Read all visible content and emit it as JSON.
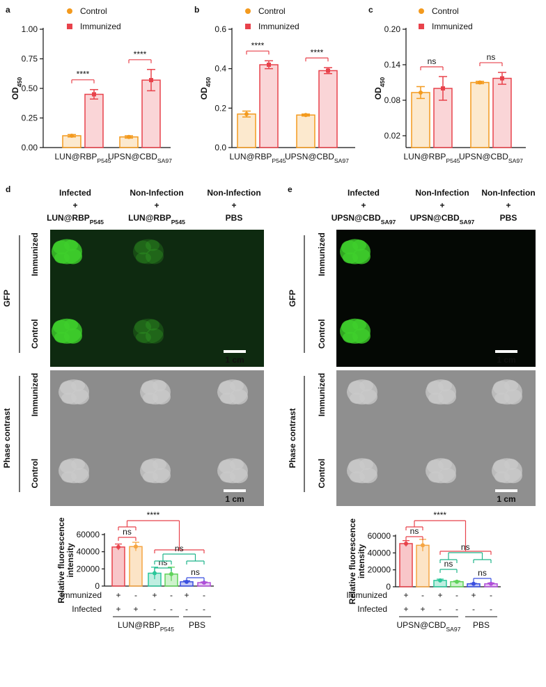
{
  "chart_data": [
    {
      "panel": "a",
      "type": "bar",
      "y_label": "OD",
      "y_label_subscript": "450",
      "categories": [
        "LUN@RBP",
        "UPSN@CBD"
      ],
      "category_subscripts": [
        "P545",
        "SA97"
      ],
      "series": [
        {
          "name": "Control",
          "color": "#f39a1e",
          "values": [
            0.1,
            0.09
          ],
          "errors": [
            0.01,
            0.01
          ]
        },
        {
          "name": "Immunized",
          "color": "#e8424b",
          "values": [
            0.45,
            0.57
          ],
          "errors": [
            0.04,
            0.09
          ]
        }
      ],
      "ylim": [
        0,
        1
      ],
      "yticks": [
        {
          "value": 0,
          "label": "0.00"
        },
        {
          "value": 0.25,
          "label": "0.25"
        },
        {
          "value": 0.5,
          "label": "0.50"
        },
        {
          "value": 0.75,
          "label": "0.75"
        },
        {
          "value": 1,
          "label": "1.00"
        }
      ],
      "annotations": [
        {
          "text": "****",
          "color": "#e8424b"
        },
        {
          "text": "****",
          "color": "#e8424b"
        }
      ]
    },
    {
      "panel": "b",
      "type": "bar",
      "y_label": "OD",
      "y_label_subscript": "450",
      "categories": [
        "LUN@RBP",
        "UPSN@CBD"
      ],
      "category_subscripts": [
        "P545",
        "SA97"
      ],
      "series": [
        {
          "name": "Control",
          "color": "#f39a1e",
          "values": [
            0.17,
            0.165
          ],
          "errors": [
            0.015,
            0.005
          ]
        },
        {
          "name": "Immunized",
          "color": "#e8424b",
          "values": [
            0.42,
            0.39
          ],
          "errors": [
            0.02,
            0.015
          ]
        }
      ],
      "ylim": [
        0,
        0.6
      ],
      "yticks": [
        {
          "value": 0,
          "label": "0.0"
        },
        {
          "value": 0.2,
          "label": "0.2"
        },
        {
          "value": 0.4,
          "label": "0.4"
        },
        {
          "value": 0.6,
          "label": "0.6"
        }
      ],
      "annotations": [
        {
          "text": "****",
          "color": "#e8424b"
        },
        {
          "text": "****",
          "color": "#e8424b"
        }
      ]
    },
    {
      "panel": "c",
      "type": "bar",
      "y_label": "OD",
      "y_label_subscript": "450",
      "categories": [
        "LUN@RBP",
        "UPSN@CBD"
      ],
      "category_subscripts": [
        "P545",
        "SA97"
      ],
      "series": [
        {
          "name": "Control",
          "color": "#f39a1e",
          "values": [
            0.093,
            0.11
          ],
          "errors": [
            0.01,
            0.002
          ]
        },
        {
          "name": "Immunized",
          "color": "#e8424b",
          "values": [
            0.1,
            0.117
          ],
          "errors": [
            0.02,
            0.01
          ]
        }
      ],
      "ylim": [
        0,
        0.2
      ],
      "yticks": [
        {
          "value": 0.02,
          "label": "0.02"
        },
        {
          "value": 0.08,
          "label": "0.08"
        },
        {
          "value": 0.14,
          "label": "0.14"
        },
        {
          "value": 0.2,
          "label": "0.20"
        }
      ],
      "annotations": [
        {
          "text": "ns",
          "color": "#e8424b"
        },
        {
          "text": "ns",
          "color": "#e8424b"
        }
      ]
    },
    {
      "type": "bar",
      "y_label": [
        "Relative fluorescence",
        "intensity"
      ],
      "values": [
        45500,
        46000,
        15000,
        14000,
        5000,
        4000
      ],
      "errors": [
        3500,
        5000,
        7000,
        8000,
        1200,
        800
      ],
      "colors": [
        "#e8424b",
        "#f5a542",
        "#2bc79a",
        "#5fd35a",
        "#3a4fe0",
        "#b04fd8"
      ],
      "ylim": [
        0,
        60000
      ],
      "yticks": [
        0,
        20000,
        40000,
        60000
      ],
      "rows": [
        {
          "label": "Immunized",
          "marks": [
            "+",
            "-",
            "+",
            "-",
            "+",
            "-"
          ]
        },
        {
          "label": "Infected",
          "marks": [
            "+",
            "+",
            "-",
            "-",
            "-",
            "-"
          ]
        }
      ],
      "groups": [
        {
          "label": "LUN@RBP",
          "subscript": "P545"
        },
        {
          "label": "PBS"
        }
      ],
      "annotations": [
        {
          "text": "ns",
          "color": "#e8424b"
        },
        {
          "text": "****",
          "color": "#e8424b"
        },
        {
          "text": "ns",
          "color": "#1fb58a"
        },
        {
          "text": "ns",
          "color": "#1fb58a"
        },
        {
          "text": "ns",
          "color": "#3a4fe0"
        }
      ]
    },
    {
      "type": "bar",
      "y_label": [
        "Relative fluorescence",
        "intensity"
      ],
      "values": [
        51000,
        49000,
        7500,
        6000,
        3500,
        3500
      ],
      "errors": [
        3500,
        7000,
        1500,
        800,
        500,
        1000
      ],
      "colors": [
        "#e8424b",
        "#f5a542",
        "#2bc79a",
        "#5fd35a",
        "#3a4fe0",
        "#b04fd8"
      ],
      "ylim": [
        0,
        60000
      ],
      "yticks": [
        0,
        20000,
        40000,
        60000
      ],
      "rows": [
        {
          "label": "Immunized",
          "marks": [
            "+",
            "-",
            "+",
            "-",
            "+",
            "-"
          ]
        },
        {
          "label": "Infected",
          "marks": [
            "+",
            "+",
            "-",
            "-",
            "-",
            "-"
          ]
        }
      ],
      "groups": [
        {
          "label": "UPSN@CBD",
          "subscript": "SA97"
        },
        {
          "label": "PBS"
        }
      ],
      "annotations": [
        {
          "text": "ns",
          "color": "#e8424b"
        },
        {
          "text": "****",
          "color": "#e8424b"
        },
        {
          "text": "ns",
          "color": "#1fb58a"
        },
        {
          "text": "ns",
          "color": "#1fb58a"
        },
        {
          "text": "ns",
          "color": "#3a4fe0"
        }
      ]
    }
  ],
  "image_panels": [
    {
      "panel": "d",
      "columns": [
        {
          "lines": [
            "Infected",
            "+",
            "LUN@RBP"
          ],
          "subscript": "P545"
        },
        {
          "lines": [
            "Non-Infection",
            "+",
            "LUN@RBP"
          ],
          "subscript": "P545"
        },
        {
          "lines": [
            "Non-Infection",
            "+",
            "PBS"
          ]
        }
      ],
      "sections": [
        {
          "label": "GFP",
          "rows": [
            "Immunized",
            "Control"
          ],
          "scale": "1 cm"
        },
        {
          "label": "Phase contrast",
          "rows": [
            "Immunized",
            "Control"
          ],
          "scale": "1 cm"
        }
      ]
    },
    {
      "panel": "e",
      "columns": [
        {
          "lines": [
            "Infected",
            "+",
            "UPSN@CBD"
          ],
          "subscript": "SA97"
        },
        {
          "lines": [
            "Non-Infection",
            "+",
            "UPSN@CBD"
          ],
          "subscript": "SA97"
        },
        {
          "lines": [
            "Non-Infection",
            "+",
            "PBS"
          ]
        }
      ],
      "sections": [
        {
          "label": "GFP",
          "rows": [
            "Immunized",
            "Control"
          ],
          "scale": "1 cm"
        },
        {
          "label": "Phase contrast",
          "rows": [
            "Immunized",
            "Control"
          ],
          "scale": "1 cm"
        }
      ]
    }
  ]
}
